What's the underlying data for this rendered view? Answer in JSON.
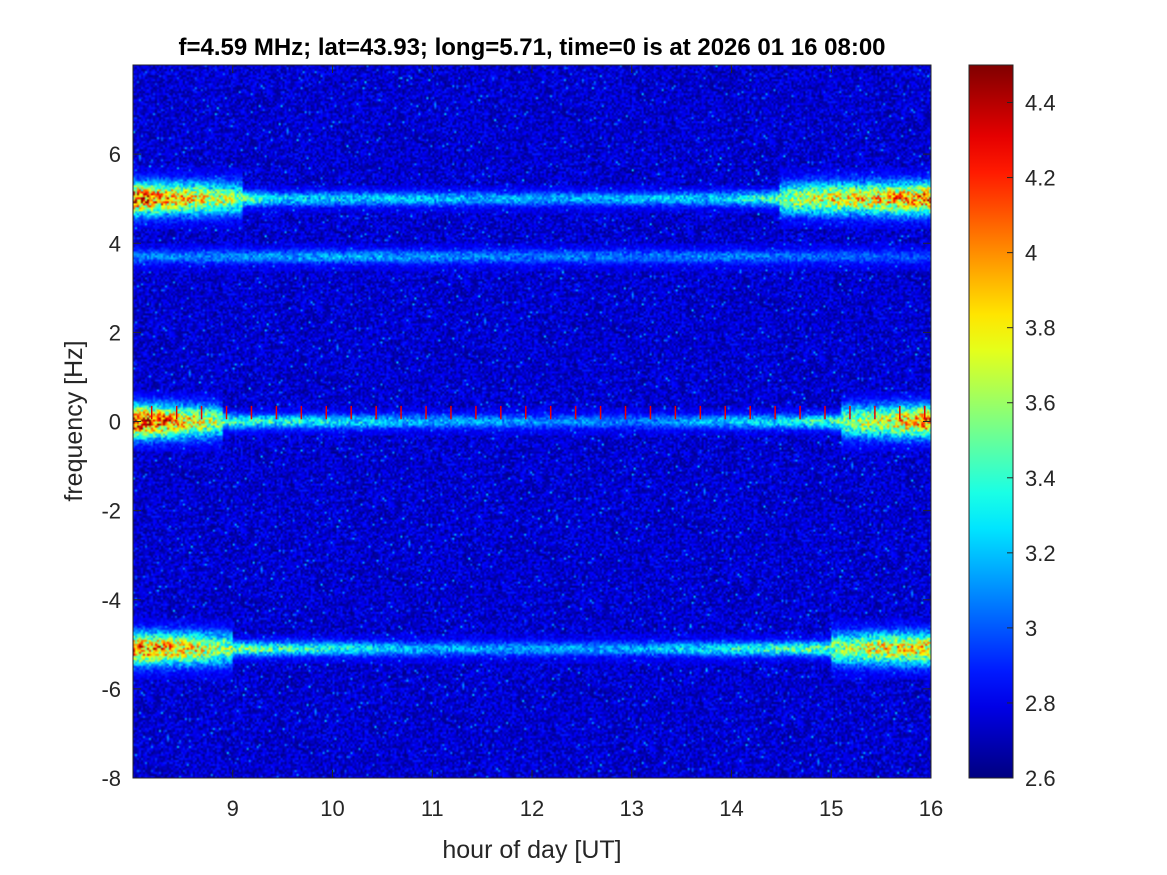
{
  "chart_data": {
    "type": "heatmap",
    "title": "f=4.59 MHz;  lat=43.93; long=5.71, time=0 is at 2026 01 16 08:00",
    "xlabel": "hour of day [UT]",
    "ylabel": "frequency [Hz]",
    "xlim": [
      8,
      16
    ],
    "ylim": [
      -8,
      8
    ],
    "xticks": [
      9,
      10,
      11,
      12,
      13,
      14,
      15,
      16
    ],
    "yticks": [
      -8,
      -6,
      -4,
      -2,
      0,
      2,
      4,
      6
    ],
    "colorbar": {
      "colormap": "jet",
      "clim": [
        2.6,
        4.5
      ],
      "ticks": [
        2.6,
        2.8,
        3,
        3.2,
        3.4,
        3.6,
        3.8,
        4,
        4.2,
        4.4
      ]
    },
    "background_level": 2.75,
    "features": [
      {
        "name": "Doppler trace near +5 Hz",
        "freq_hz": 5.0,
        "x": [
          8.0,
          8.7,
          9.5,
          12.0,
          14.0,
          14.8,
          15.5,
          16.0
        ],
        "peak": [
          4.3,
          3.9,
          3.3,
          3.2,
          3.3,
          3.8,
          4.0,
          4.2
        ]
      },
      {
        "name": "Faint trace near +3.7 Hz",
        "freq_hz": 3.7,
        "x": [
          8.0,
          10.0,
          12.0,
          14.0,
          16.0
        ],
        "peak": [
          3.1,
          3.2,
          3.1,
          3.1,
          3.0
        ]
      },
      {
        "name": "Trace near 0 Hz",
        "freq_hz": 0.0,
        "x": [
          8.0,
          8.5,
          9.0,
          11.0,
          13.0,
          14.7,
          15.5,
          16.0
        ],
        "peak": [
          4.5,
          4.0,
          3.5,
          3.2,
          3.1,
          3.4,
          3.8,
          4.2
        ]
      },
      {
        "name": "Doppler trace near -5 Hz",
        "freq_hz": -5.1,
        "x": [
          8.0,
          8.5,
          9.0,
          11.0,
          13.0,
          15.0,
          15.5,
          16.0
        ],
        "peak": [
          4.2,
          4.0,
          3.6,
          3.2,
          3.2,
          3.6,
          3.9,
          4.0
        ]
      }
    ],
    "marker_row": {
      "freq_hz": 0.2,
      "spacing_h": 0.25,
      "level": 4.3
    }
  }
}
